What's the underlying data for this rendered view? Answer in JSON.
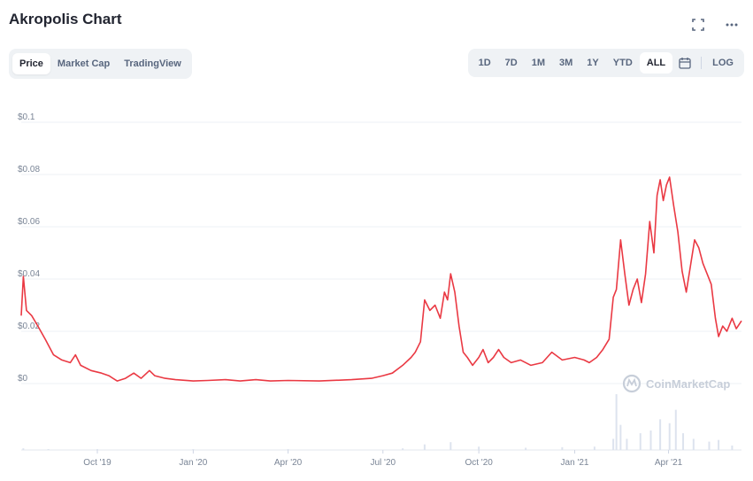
{
  "header": {
    "title": "Akropolis Chart"
  },
  "tabs": [
    {
      "label": "Price",
      "active": true
    },
    {
      "label": "Market Cap",
      "active": false
    },
    {
      "label": "TradingView",
      "active": false
    }
  ],
  "ranges": [
    {
      "label": "1D",
      "active": false
    },
    {
      "label": "7D",
      "active": false
    },
    {
      "label": "1M",
      "active": false
    },
    {
      "label": "3M",
      "active": false
    },
    {
      "label": "1Y",
      "active": false
    },
    {
      "label": "YTD",
      "active": false
    },
    {
      "label": "ALL",
      "active": true
    }
  ],
  "log_label": "LOG",
  "watermark": "CoinMarketCap",
  "colors": {
    "line": "#ea3943",
    "volume": "#dde3ee",
    "grid": "#eef1f5"
  },
  "chart_data": {
    "type": "line",
    "y_ticks": [
      {
        "label": "$0",
        "value": 0
      },
      {
        "label": "$0.02",
        "value": 0.02
      },
      {
        "label": "$0.04",
        "value": 0.04
      },
      {
        "label": "$0.06",
        "value": 0.06
      },
      {
        "label": "$0.08",
        "value": 0.08
      },
      {
        "label": "$0.1",
        "value": 0.1
      }
    ],
    "ylim": [
      0,
      0.1
    ],
    "x_ticks": [
      {
        "label": "Oct '19",
        "date": "2019-10-01"
      },
      {
        "label": "Jan '20",
        "date": "2020-01-01"
      },
      {
        "label": "Apr '20",
        "date": "2020-04-01"
      },
      {
        "label": "Jul '20",
        "date": "2020-07-01"
      },
      {
        "label": "Oct '20",
        "date": "2020-10-01"
      },
      {
        "label": "Jan '21",
        "date": "2021-01-01"
      },
      {
        "label": "Apr '21",
        "date": "2021-04-01"
      }
    ],
    "xlim": [
      "2019-07-20",
      "2021-06-10"
    ],
    "series": [
      {
        "values": [
          [
            "2019-07-20",
            0.026
          ],
          [
            "2019-07-22",
            0.041
          ],
          [
            "2019-07-25",
            0.028
          ],
          [
            "2019-07-30",
            0.026
          ],
          [
            "2019-08-05",
            0.022
          ],
          [
            "2019-08-12",
            0.017
          ],
          [
            "2019-08-20",
            0.011
          ],
          [
            "2019-08-28",
            0.009
          ],
          [
            "2019-09-05",
            0.008
          ],
          [
            "2019-09-10",
            0.011
          ],
          [
            "2019-09-15",
            0.007
          ],
          [
            "2019-09-25",
            0.005
          ],
          [
            "2019-10-05",
            0.004
          ],
          [
            "2019-10-12",
            0.003
          ],
          [
            "2019-10-20",
            0.001
          ],
          [
            "2019-10-28",
            0.002
          ],
          [
            "2019-11-05",
            0.004
          ],
          [
            "2019-11-12",
            0.002
          ],
          [
            "2019-11-20",
            0.005
          ],
          [
            "2019-11-25",
            0.003
          ],
          [
            "2019-12-05",
            0.002
          ],
          [
            "2019-12-15",
            0.0015
          ],
          [
            "2020-01-01",
            0.001
          ],
          [
            "2020-01-15",
            0.0012
          ],
          [
            "2020-02-01",
            0.0015
          ],
          [
            "2020-02-15",
            0.001
          ],
          [
            "2020-03-01",
            0.0015
          ],
          [
            "2020-03-15",
            0.001
          ],
          [
            "2020-04-01",
            0.0012
          ],
          [
            "2020-05-01",
            0.001
          ],
          [
            "2020-06-01",
            0.0015
          ],
          [
            "2020-06-20",
            0.002
          ],
          [
            "2020-07-01",
            0.003
          ],
          [
            "2020-07-10",
            0.004
          ],
          [
            "2020-07-20",
            0.007
          ],
          [
            "2020-07-28",
            0.01
          ],
          [
            "2020-08-01",
            0.012
          ],
          [
            "2020-08-06",
            0.016
          ],
          [
            "2020-08-10",
            0.032
          ],
          [
            "2020-08-15",
            0.028
          ],
          [
            "2020-08-20",
            0.03
          ],
          [
            "2020-08-25",
            0.025
          ],
          [
            "2020-08-29",
            0.035
          ],
          [
            "2020-09-01",
            0.032
          ],
          [
            "2020-09-04",
            0.042
          ],
          [
            "2020-09-08",
            0.035
          ],
          [
            "2020-09-12",
            0.022
          ],
          [
            "2020-09-16",
            0.012
          ],
          [
            "2020-09-20",
            0.01
          ],
          [
            "2020-09-25",
            0.007
          ],
          [
            "2020-10-01",
            0.01
          ],
          [
            "2020-10-05",
            0.013
          ],
          [
            "2020-10-10",
            0.008
          ],
          [
            "2020-10-15",
            0.01
          ],
          [
            "2020-10-20",
            0.013
          ],
          [
            "2020-10-25",
            0.01
          ],
          [
            "2020-11-01",
            0.008
          ],
          [
            "2020-11-10",
            0.009
          ],
          [
            "2020-11-20",
            0.007
          ],
          [
            "2020-12-01",
            0.008
          ],
          [
            "2020-12-10",
            0.012
          ],
          [
            "2020-12-20",
            0.009
          ],
          [
            "2021-01-01",
            0.01
          ],
          [
            "2021-01-10",
            0.009
          ],
          [
            "2021-01-15",
            0.008
          ],
          [
            "2021-01-22",
            0.01
          ],
          [
            "2021-01-28",
            0.013
          ],
          [
            "2021-02-03",
            0.017
          ],
          [
            "2021-02-07",
            0.033
          ],
          [
            "2021-02-10",
            0.036
          ],
          [
            "2021-02-14",
            0.055
          ],
          [
            "2021-02-18",
            0.042
          ],
          [
            "2021-02-22",
            0.03
          ],
          [
            "2021-02-26",
            0.036
          ],
          [
            "2021-03-02",
            0.04
          ],
          [
            "2021-03-06",
            0.031
          ],
          [
            "2021-03-10",
            0.042
          ],
          [
            "2021-03-14",
            0.062
          ],
          [
            "2021-03-18",
            0.05
          ],
          [
            "2021-03-21",
            0.072
          ],
          [
            "2021-03-24",
            0.078
          ],
          [
            "2021-03-27",
            0.07
          ],
          [
            "2021-03-30",
            0.076
          ],
          [
            "2021-04-02",
            0.079
          ],
          [
            "2021-04-06",
            0.068
          ],
          [
            "2021-04-10",
            0.058
          ],
          [
            "2021-04-14",
            0.043
          ],
          [
            "2021-04-18",
            0.035
          ],
          [
            "2021-04-22",
            0.045
          ],
          [
            "2021-04-26",
            0.055
          ],
          [
            "2021-04-30",
            0.052
          ],
          [
            "2021-05-04",
            0.046
          ],
          [
            "2021-05-08",
            0.042
          ],
          [
            "2021-05-12",
            0.038
          ],
          [
            "2021-05-16",
            0.025
          ],
          [
            "2021-05-19",
            0.018
          ],
          [
            "2021-05-23",
            0.022
          ],
          [
            "2021-05-27",
            0.02
          ],
          [
            "2021-06-01",
            0.025
          ],
          [
            "2021-06-05",
            0.021
          ],
          [
            "2021-06-10",
            0.024
          ]
        ]
      }
    ],
    "volume": [
      [
        "2019-07-22",
        0.03
      ],
      [
        "2019-08-15",
        0.01
      ],
      [
        "2019-10-01",
        0.005
      ],
      [
        "2020-01-01",
        0.004
      ],
      [
        "2020-04-01",
        0.004
      ],
      [
        "2020-07-20",
        0.03
      ],
      [
        "2020-08-10",
        0.1
      ],
      [
        "2020-09-04",
        0.14
      ],
      [
        "2020-10-01",
        0.06
      ],
      [
        "2020-11-15",
        0.04
      ],
      [
        "2020-12-20",
        0.05
      ],
      [
        "2021-01-20",
        0.06
      ],
      [
        "2021-02-07",
        0.2
      ],
      [
        "2021-02-10",
        1.0
      ],
      [
        "2021-02-14",
        0.45
      ],
      [
        "2021-02-20",
        0.2
      ],
      [
        "2021-03-05",
        0.3
      ],
      [
        "2021-03-15",
        0.35
      ],
      [
        "2021-03-24",
        0.55
      ],
      [
        "2021-04-02",
        0.48
      ],
      [
        "2021-04-08",
        0.72
      ],
      [
        "2021-04-15",
        0.3
      ],
      [
        "2021-04-25",
        0.2
      ],
      [
        "2021-05-10",
        0.15
      ],
      [
        "2021-05-19",
        0.18
      ],
      [
        "2021-06-01",
        0.08
      ]
    ]
  }
}
